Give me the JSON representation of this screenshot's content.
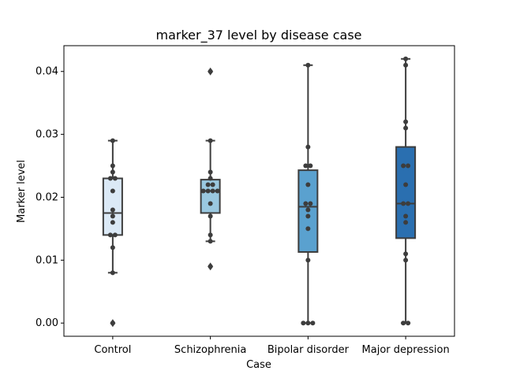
{
  "chart_data": {
    "type": "box",
    "title": "marker_37 level by disease case",
    "xlabel": "Case",
    "ylabel": "Marker level",
    "ylim": [
      -0.0021,
      0.0441
    ],
    "yticks": [
      "0.00",
      "0.01",
      "0.02",
      "0.03",
      "0.04"
    ],
    "categories": [
      "Control",
      "Schizophrenia",
      "Bipolar disorder",
      "Major depression"
    ],
    "grid": false,
    "colors": [
      "#dbe9f6",
      "#9ac8e0",
      "#5aa1cf",
      "#2a6fb0"
    ],
    "boxes": [
      {
        "q1": 0.014,
        "median": 0.0175,
        "q3": 0.023,
        "whisker_low": 0.008,
        "whisker_high": 0.029,
        "fliers": [
          0.0
        ]
      },
      {
        "q1": 0.0175,
        "median": 0.021,
        "q3": 0.0228,
        "whisker_low": 0.013,
        "whisker_high": 0.029,
        "fliers": [
          0.009,
          0.04
        ]
      },
      {
        "q1": 0.0113,
        "median": 0.0185,
        "q3": 0.0243,
        "whisker_low": 0.0,
        "whisker_high": 0.041,
        "fliers": []
      },
      {
        "q1": 0.0135,
        "median": 0.019,
        "q3": 0.028,
        "whisker_low": 0.0,
        "whisker_high": 0.042,
        "fliers": []
      }
    ],
    "points": [
      [
        0.0,
        0.008,
        0.012,
        0.014,
        0.014,
        0.016,
        0.017,
        0.018,
        0.021,
        0.023,
        0.023,
        0.024,
        0.025,
        0.029
      ],
      [
        0.009,
        0.013,
        0.014,
        0.017,
        0.019,
        0.021,
        0.021,
        0.021,
        0.021,
        0.022,
        0.022,
        0.023,
        0.024,
        0.029,
        0.04
      ],
      [
        0.0,
        0.0,
        0.0,
        0.01,
        0.015,
        0.017,
        0.018,
        0.019,
        0.019,
        0.022,
        0.025,
        0.025,
        0.028,
        0.041
      ],
      [
        0.0,
        0.0,
        0.01,
        0.011,
        0.016,
        0.017,
        0.019,
        0.019,
        0.022,
        0.025,
        0.025,
        0.031,
        0.032,
        0.041,
        0.042
      ]
    ]
  }
}
